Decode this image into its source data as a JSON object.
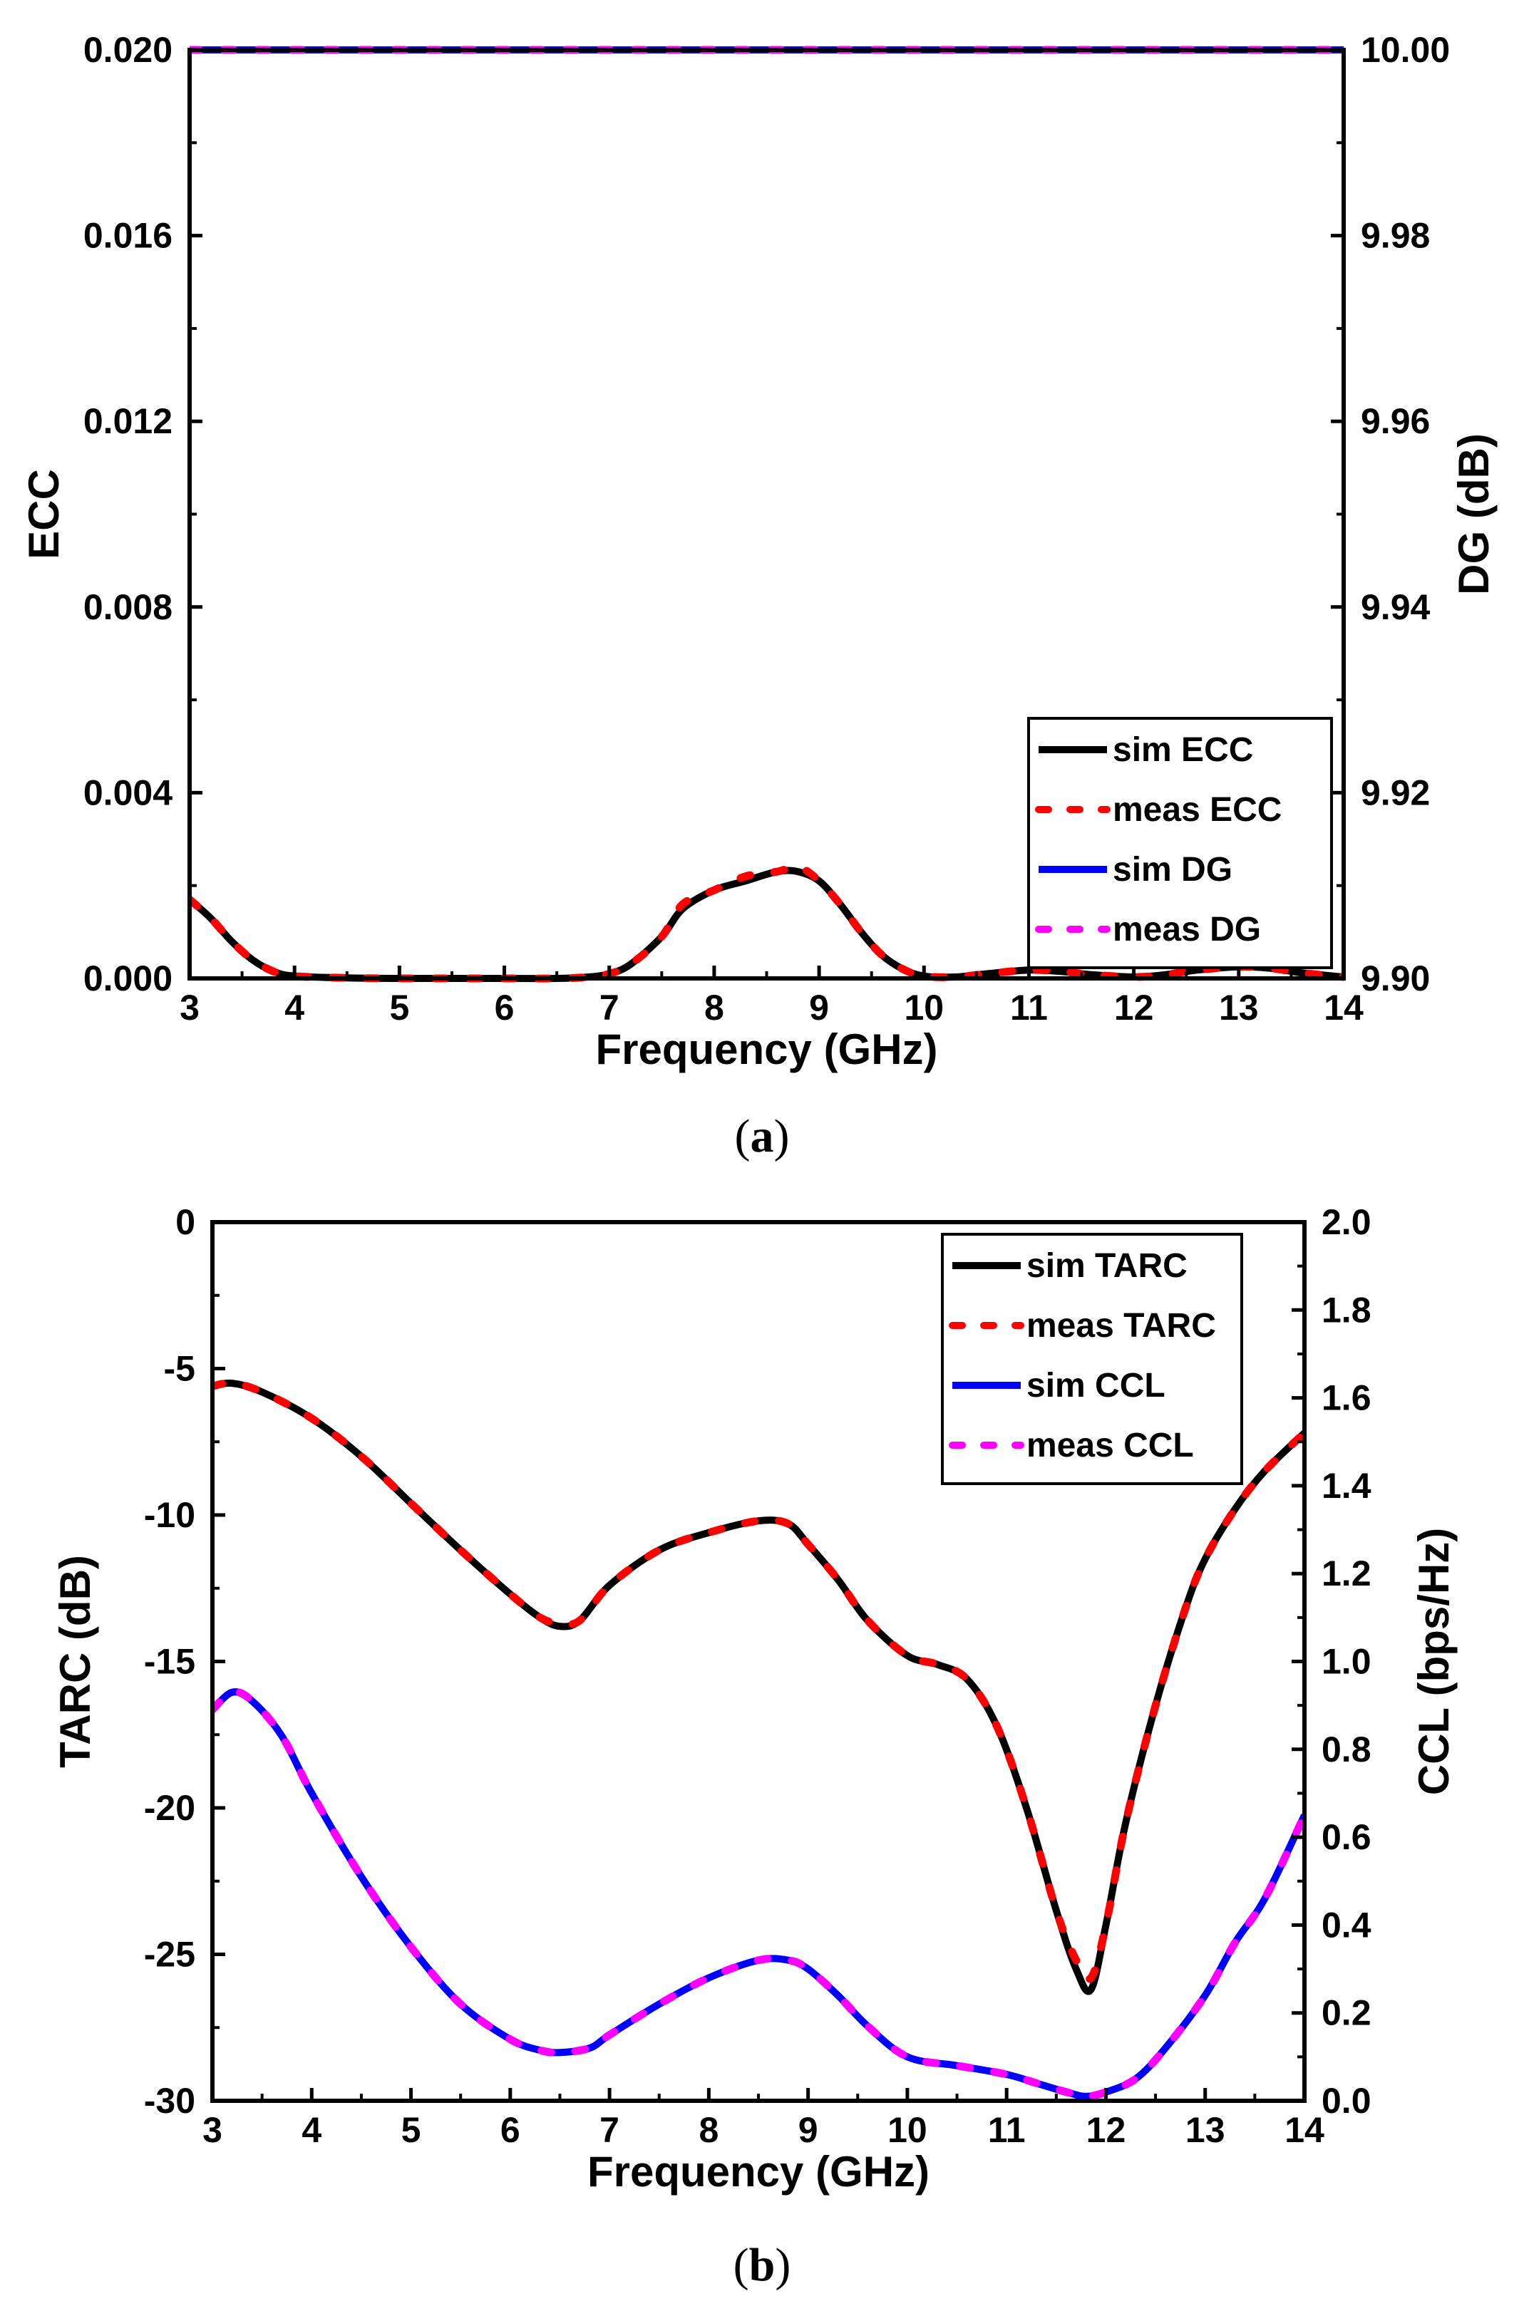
{
  "captions": {
    "a": {
      "open": "(",
      "letter": "a",
      "close": ")"
    },
    "b": {
      "open": "(",
      "letter": "b",
      "close": ")"
    }
  },
  "chart_data": [
    {
      "type": "line",
      "panel": "a",
      "xlabel": "Frequency (GHz)",
      "ylabel": "ECC",
      "y2label": "DG (dB)",
      "xlim": [
        3,
        14
      ],
      "ylim": [
        0,
        0.02
      ],
      "y2lim": [
        9.9,
        10.0
      ],
      "x_ticks": [
        "3",
        "4",
        "5",
        "6",
        "7",
        "8",
        "9",
        "10",
        "11",
        "12",
        "13",
        "14"
      ],
      "y_ticks": [
        "0.000",
        "0.004",
        "0.008",
        "0.012",
        "0.016",
        "0.020"
      ],
      "y2_ticks": [
        "9.90",
        "9.92",
        "9.94",
        "9.96",
        "9.98",
        "10.00"
      ],
      "legend_position": "bottom-right",
      "series": [
        {
          "name": "sim ECC",
          "axis": "left",
          "color": "#000000",
          "style": "solid",
          "x": [
            3.0,
            3.2,
            3.4,
            3.6,
            3.8,
            4.0,
            4.5,
            5.0,
            6.0,
            6.5,
            6.8,
            7.0,
            7.2,
            7.5,
            7.7,
            8.0,
            8.3,
            8.6,
            8.8,
            9.0,
            9.2,
            9.4,
            9.6,
            9.8,
            10.0,
            10.3,
            10.6,
            11.0,
            11.3,
            11.6,
            12.0,
            12.3,
            12.6,
            13.0,
            13.3,
            13.6,
            14.0
          ],
          "y": [
            0.0017,
            0.0013,
            0.0008,
            0.0004,
            0.00015,
            5e-05,
            1e-05,
            0.0,
            0.0,
            0.0,
            3e-05,
            0.0001,
            0.0003,
            0.0009,
            0.0015,
            0.0019,
            0.0021,
            0.0023,
            0.0023,
            0.0021,
            0.0016,
            0.001,
            0.0005,
            0.0002,
            5e-05,
            3e-05,
            0.0001,
            0.00018,
            0.00015,
            8e-05,
            3e-05,
            8e-05,
            0.00018,
            0.00025,
            0.00022,
            0.00012,
            3e-05
          ]
        },
        {
          "name": "meas ECC",
          "axis": "left",
          "color": "#ff0000",
          "style": "dashed",
          "x": [
            3.0,
            3.2,
            3.4,
            3.6,
            3.8,
            4.0,
            4.5,
            5.0,
            6.0,
            6.5,
            6.8,
            7.0,
            7.2,
            7.5,
            7.7,
            8.0,
            8.3,
            8.6,
            8.8,
            9.0,
            9.2,
            9.4,
            9.6,
            9.8,
            10.0,
            10.3,
            10.6,
            11.0,
            11.3,
            11.6,
            12.0,
            12.3,
            12.6,
            13.0,
            13.3,
            13.6,
            14.0
          ],
          "y": [
            0.0017,
            0.0013,
            0.0008,
            0.0004,
            0.00015,
            5e-05,
            1e-05,
            0.0,
            0.0,
            0.0,
            3e-05,
            0.0001,
            0.0003,
            0.0009,
            0.0016,
            0.0019,
            0.0022,
            0.0023,
            0.0024,
            0.0021,
            0.0016,
            0.001,
            0.0005,
            0.0002,
            5e-05,
            3e-05,
            0.0001,
            0.00018,
            0.00015,
            8e-05,
            3e-05,
            8e-05,
            0.00018,
            0.00025,
            0.00022,
            0.00012,
            3e-05
          ]
        },
        {
          "name": "sim DG",
          "axis": "right",
          "color": "#0000ff",
          "style": "solid",
          "x": [
            3,
            14
          ],
          "y": [
            10.0,
            10.0
          ]
        },
        {
          "name": "meas DG",
          "axis": "right",
          "color": "#ff00ff",
          "style": "dashed",
          "x": [
            3,
            14
          ],
          "y": [
            10.0,
            10.0
          ]
        }
      ]
    },
    {
      "type": "line",
      "panel": "b",
      "xlabel": "Frequency (GHz)",
      "ylabel": "TARC (dB)",
      "y2label": "CCL (bps/Hz)",
      "xlim": [
        3,
        14
      ],
      "ylim": [
        -30,
        0
      ],
      "y2lim": [
        0,
        2.0
      ],
      "x_ticks": [
        "3",
        "4",
        "5",
        "6",
        "7",
        "8",
        "9",
        "10",
        "11",
        "12",
        "13",
        "14"
      ],
      "y_ticks": [
        "0",
        "-5",
        "-10",
        "-15",
        "-20",
        "-25",
        "-30"
      ],
      "y2_ticks": [
        "0.0",
        "0.2",
        "0.4",
        "0.6",
        "0.8",
        "1.0",
        "1.2",
        "1.4",
        "1.6",
        "1.8",
        "2.0"
      ],
      "legend_position": "top-right",
      "series": [
        {
          "name": "sim TARC",
          "axis": "left",
          "color": "#000000",
          "style": "solid",
          "x": [
            3.0,
            3.2,
            3.5,
            4.0,
            4.5,
            5.0,
            5.5,
            6.0,
            6.3,
            6.5,
            6.7,
            7.0,
            7.5,
            8.0,
            8.5,
            8.8,
            9.0,
            9.3,
            9.6,
            10.0,
            10.3,
            10.6,
            10.9,
            11.2,
            11.5,
            11.7,
            11.85,
            12.0,
            12.2,
            12.5,
            12.8,
            13.0,
            13.3,
            13.6,
            14.0
          ],
          "y": [
            -5.6,
            -5.5,
            -5.8,
            -6.7,
            -8.0,
            -9.6,
            -11.2,
            -12.7,
            -13.5,
            -13.8,
            -13.6,
            -12.4,
            -11.2,
            -10.6,
            -10.2,
            -10.3,
            -11.0,
            -12.2,
            -13.6,
            -14.8,
            -15.1,
            -15.6,
            -17.2,
            -20.0,
            -23.5,
            -25.5,
            -26.2,
            -24.0,
            -20.5,
            -16.5,
            -13.2,
            -11.5,
            -9.8,
            -8.5,
            -7.2
          ]
        },
        {
          "name": "meas TARC",
          "axis": "left",
          "color": "#ff0000",
          "style": "dashed",
          "x": [
            3.0,
            3.2,
            3.5,
            4.0,
            4.5,
            5.0,
            5.5,
            6.0,
            6.3,
            6.5,
            6.7,
            7.0,
            7.5,
            8.0,
            8.5,
            8.8,
            9.0,
            9.3,
            9.6,
            10.0,
            10.3,
            10.6,
            10.9,
            11.2,
            11.5,
            11.7,
            11.85,
            12.0,
            12.2,
            12.5,
            12.8,
            13.0,
            13.3,
            13.6,
            14.0
          ],
          "y": [
            -5.6,
            -5.5,
            -5.8,
            -6.7,
            -8.0,
            -9.6,
            -11.2,
            -12.7,
            -13.5,
            -13.7,
            -13.6,
            -12.4,
            -11.2,
            -10.6,
            -10.2,
            -10.3,
            -11.0,
            -12.2,
            -13.6,
            -14.8,
            -15.1,
            -15.6,
            -17.2,
            -20.0,
            -23.5,
            -25.2,
            -25.8,
            -24.0,
            -20.5,
            -16.5,
            -13.2,
            -11.5,
            -9.8,
            -8.5,
            -7.2
          ]
        },
        {
          "name": "sim CCL",
          "axis": "right",
          "color": "#0000ff",
          "style": "solid",
          "x": [
            3.0,
            3.2,
            3.4,
            3.7,
            4.0,
            4.5,
            5.0,
            5.5,
            6.0,
            6.3,
            6.5,
            6.8,
            7.0,
            7.5,
            8.0,
            8.5,
            8.8,
            9.0,
            9.3,
            9.6,
            10.0,
            10.5,
            11.0,
            11.3,
            11.6,
            11.8,
            12.0,
            12.3,
            12.6,
            13.0,
            13.3,
            13.6,
            14.0
          ],
          "y": [
            0.89,
            0.93,
            0.91,
            0.83,
            0.7,
            0.51,
            0.35,
            0.22,
            0.14,
            0.115,
            0.11,
            0.12,
            0.15,
            0.22,
            0.28,
            0.32,
            0.32,
            0.3,
            0.24,
            0.17,
            0.1,
            0.08,
            0.06,
            0.04,
            0.02,
            0.01,
            0.02,
            0.05,
            0.12,
            0.24,
            0.36,
            0.46,
            0.65
          ]
        },
        {
          "name": "meas CCL",
          "axis": "right",
          "color": "#ff00ff",
          "style": "dashed",
          "x": [
            3.0,
            3.2,
            3.4,
            3.7,
            4.0,
            4.5,
            5.0,
            5.5,
            6.0,
            6.3,
            6.5,
            6.8,
            7.0,
            7.5,
            8.0,
            8.5,
            8.8,
            9.0,
            9.3,
            9.6,
            10.0,
            10.5,
            11.0,
            11.3,
            11.6,
            11.8,
            12.0,
            12.3,
            12.6,
            13.0,
            13.3,
            13.6,
            14.0
          ],
          "y": [
            0.89,
            0.93,
            0.91,
            0.83,
            0.7,
            0.51,
            0.35,
            0.22,
            0.14,
            0.115,
            0.11,
            0.12,
            0.15,
            0.22,
            0.28,
            0.32,
            0.32,
            0.3,
            0.24,
            0.17,
            0.1,
            0.08,
            0.06,
            0.04,
            0.02,
            0.01,
            0.02,
            0.05,
            0.12,
            0.24,
            0.36,
            0.46,
            0.65
          ]
        }
      ]
    }
  ]
}
